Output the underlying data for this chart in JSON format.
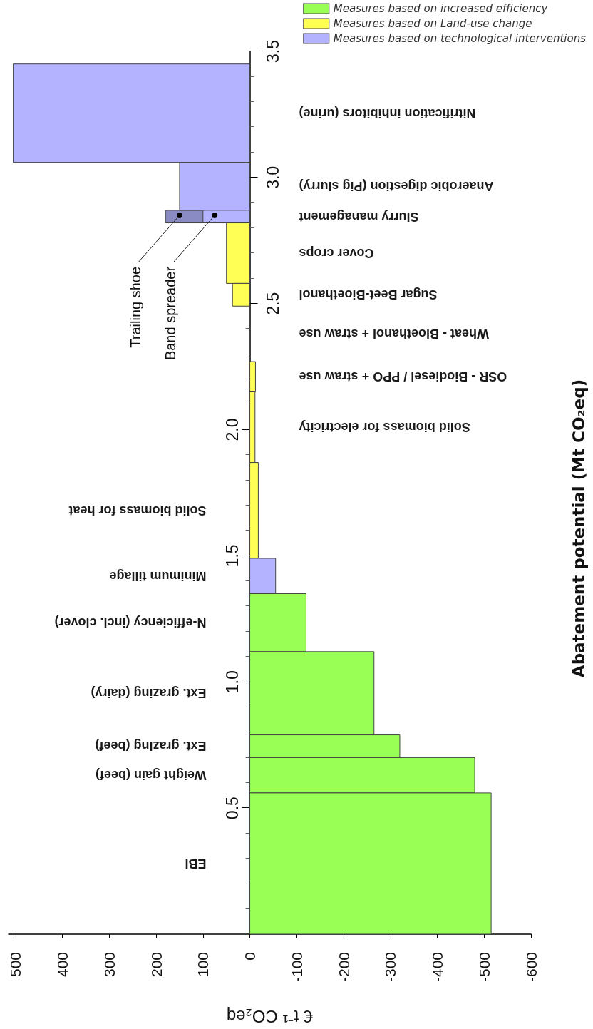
{
  "chart_data": {
    "type": "histogram",
    "orientation": "horizontal",
    "xlabel": "€ t⁻¹ CO₂eq",
    "y2label": "Abatement potential (Mt CO₂eq)",
    "bins": [
      3.45,
      3.06,
      2.87,
      2.82,
      2.58,
      2.49,
      2.27,
      2.15,
      1.87,
      1.49,
      1.35,
      1.12,
      0.79,
      0.7,
      0.56,
      0
    ],
    "categories": [
      "Nitrification inhibitors (urine)",
      "Anaerobic digestion (Pig slurry)",
      "Slurry management",
      "Cover crops",
      "Sugar Beet-Bioethanol",
      "Wheat - Bioethanol + straw use",
      "OSR - Biodiesel / PPO + straw use",
      "Solid biomass for electricity",
      "Solid biomass for heat",
      "Minimum tillage",
      "N-efficiency (incl. clover)",
      "Ext. grazing (dairy)",
      "Ext. grazing (beef)",
      "Weight gain (beef)",
      "EBI"
    ],
    "series": [
      {
        "color": "#8a8ac4",
        "values": [
          null,
          null,
          180,
          null,
          null,
          null,
          null,
          null,
          null,
          null,
          null,
          null,
          null,
          null,
          null
        ]
      },
      {
        "name": "Measures based on increased efficiency",
        "color": "#99ff55",
        "values": [
          null,
          null,
          null,
          null,
          null,
          null,
          null,
          null,
          null,
          null,
          -120,
          -265,
          -320,
          -480,
          -515
        ]
      },
      {
        "name": "Measures based on Land-use change",
        "color": "#ffff55",
        "values": [
          null,
          null,
          null,
          50,
          37,
          null,
          -12,
          -11,
          -18,
          null,
          null,
          null,
          null,
          null,
          null
        ]
      },
      {
        "name": "Measures based on technological interventions",
        "color": "#b3b3ff",
        "values": [
          505,
          150,
          100,
          null,
          null,
          null,
          null,
          null,
          null,
          -55,
          null,
          null,
          null,
          null,
          null
        ]
      }
    ],
    "xlim": [
      515,
      -600
    ],
    "xticks": [
      500,
      400,
      300,
      200,
      100,
      0,
      -100,
      -200,
      -300,
      -400,
      -500,
      -600
    ],
    "ylim": [
      0,
      3.5
    ],
    "yticks": [
      {
        "value": 0.1,
        "label": null
      },
      {
        "value": 0.2,
        "label": null
      },
      {
        "value": 0.3,
        "label": null
      },
      {
        "value": 0.4,
        "label": null
      },
      0.5,
      {
        "value": 0.6,
        "label": null
      },
      {
        "value": 0.7,
        "label": null
      },
      {
        "value": 0.8,
        "label": null
      },
      {
        "value": 0.9,
        "label": null
      },
      {
        "value": 1,
        "label": "1.0"
      },
      {
        "value": 1.1,
        "label": null
      },
      {
        "value": 1.2,
        "label": null
      },
      {
        "value": 1.3,
        "label": null
      },
      {
        "value": 1.4,
        "label": null
      },
      1.5,
      {
        "value": 1.6,
        "label": null
      },
      {
        "value": 1.7,
        "label": null
      },
      {
        "value": 1.8,
        "label": null
      },
      {
        "value": 1.9,
        "label": null
      },
      {
        "value": 2,
        "label": "2.0"
      },
      {
        "value": 2.1,
        "label": null
      },
      {
        "value": 2.2,
        "label": null
      },
      {
        "value": 2.3,
        "label": null
      },
      {
        "value": 2.4,
        "label": null
      }
    ],
    "y2lim": [
      0,
      3.5
    ],
    "y2ticks": [
      2.5,
      {
        "value": 2.6,
        "label": null
      },
      {
        "value": 2.7,
        "label": null
      },
      {
        "value": 2.8,
        "label": null
      },
      {
        "value": 2.9,
        "label": null
      },
      {
        "value": 3,
        "label": "3.0"
      },
      {
        "value": 3.1,
        "label": null
      },
      {
        "value": 3.2,
        "label": null
      },
      {
        "value": 3.3,
        "label": null
      },
      {
        "value": 3.4,
        "label": null
      },
      3.5
    ],
    "annotations": [
      {
        "text": "Trailing shoe",
        "x": 150,
        "y": 2.85
      },
      {
        "text": "Band spreader",
        "x": 75,
        "y": 2.85
      }
    ],
    "legend": "top right"
  }
}
